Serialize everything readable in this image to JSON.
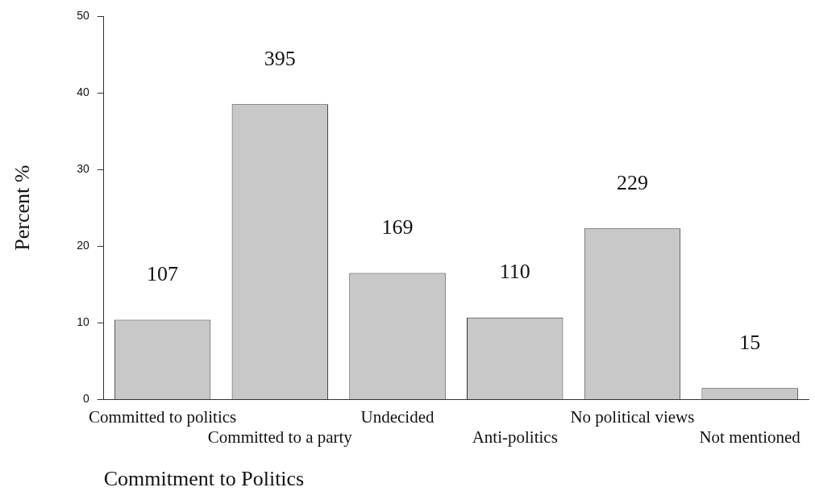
{
  "chart_data": {
    "type": "bar",
    "xlabel": "Commitment to Politics",
    "ylabel": "Percent %",
    "categories": [
      "Committed to politics",
      "Committed to a party",
      "Undecided",
      "Anti-politics",
      "No political views",
      "Not mentioned"
    ],
    "values": [
      10.4,
      38.5,
      16.5,
      10.7,
      22.3,
      1.5
    ],
    "annotations": [
      "107",
      "395",
      "169",
      "110",
      "229",
      "15"
    ],
    "color": "#c8c8c8",
    "ylim": [
      0,
      50
    ],
    "yticks": [
      0,
      10,
      20,
      30,
      40,
      50
    ],
    "grid": false,
    "legend": false
  }
}
